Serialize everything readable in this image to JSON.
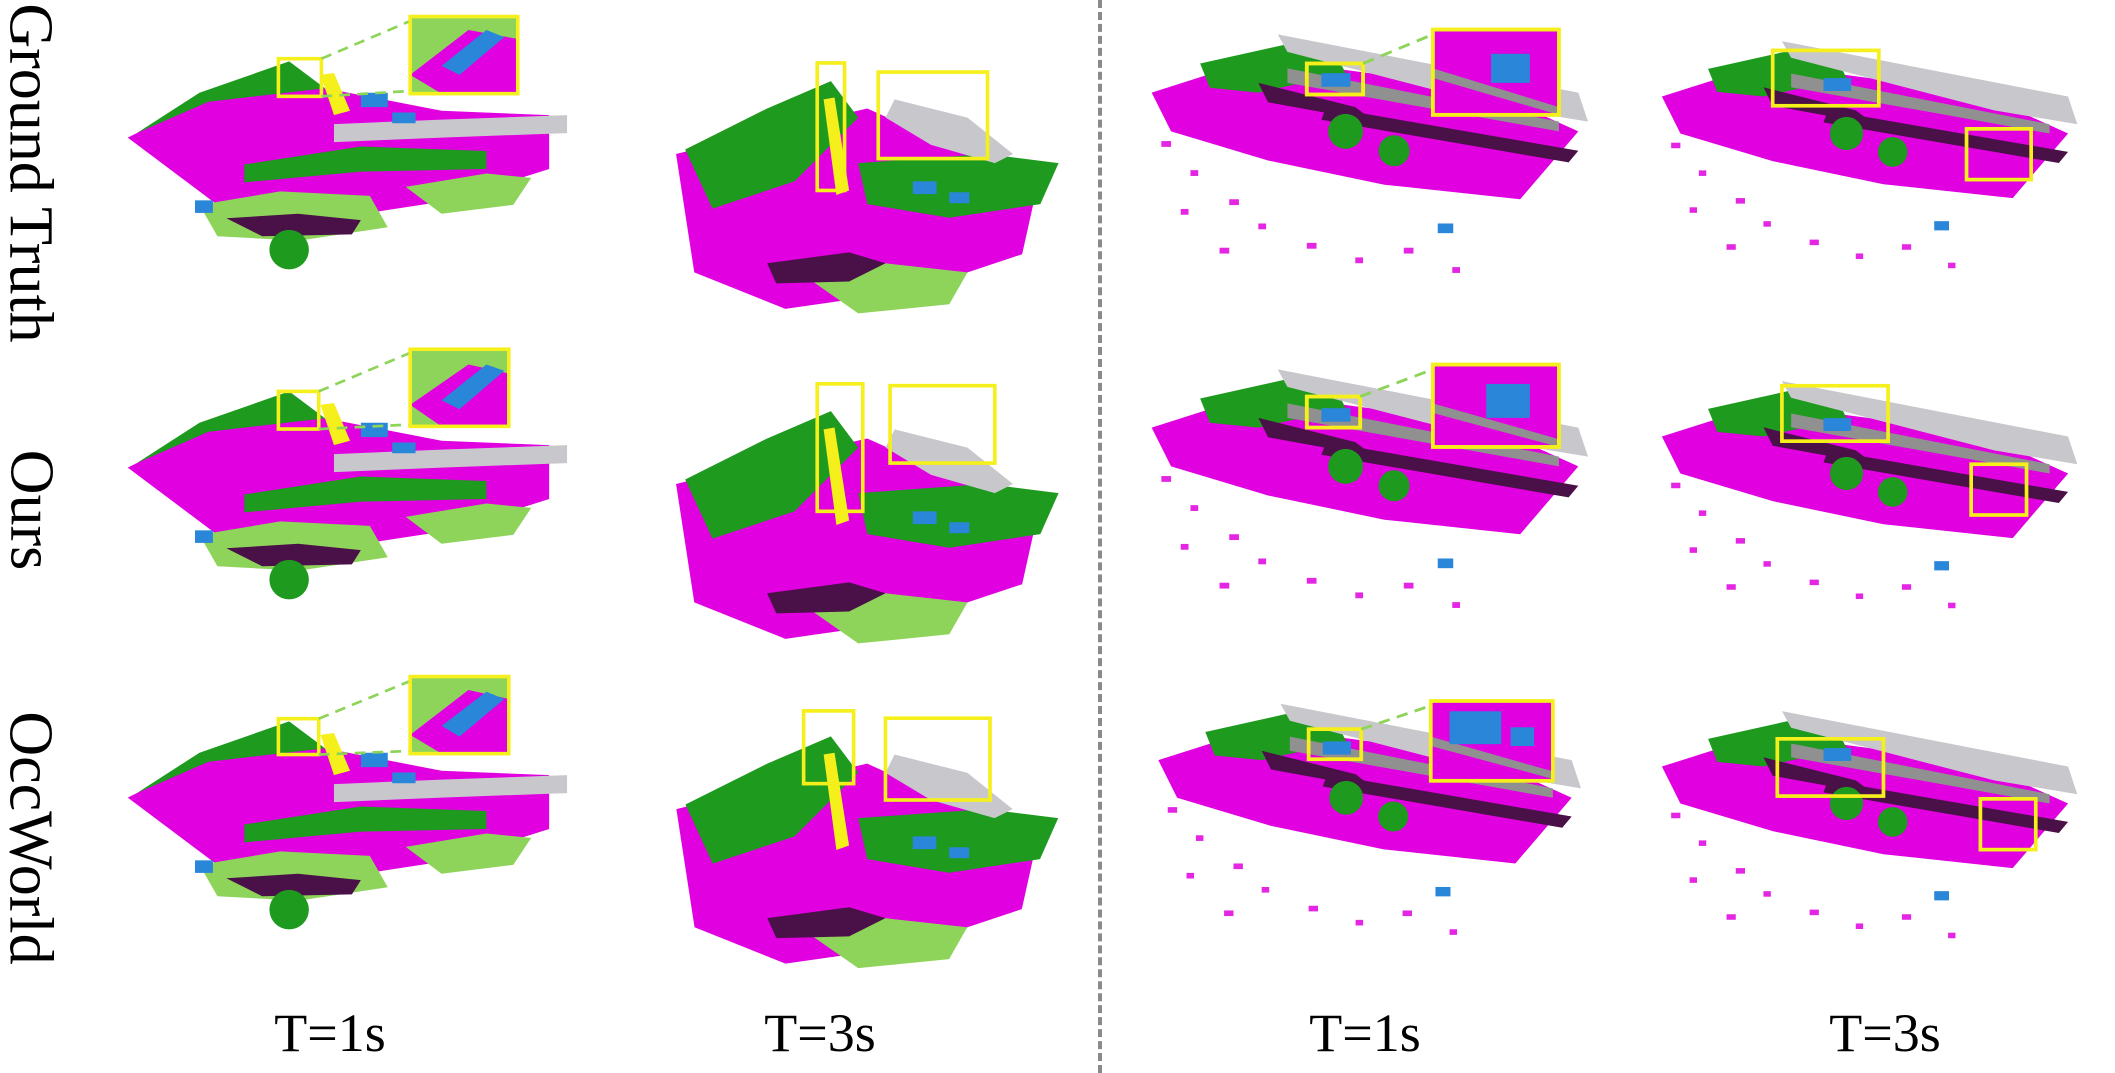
{
  "rows": [
    {
      "label": "Ground Truth"
    },
    {
      "label": "Ours"
    },
    {
      "label": "OccWorld"
    }
  ],
  "columns": [
    {
      "label": "T=1s"
    },
    {
      "label": "T=3s"
    },
    {
      "label": "T=1s"
    },
    {
      "label": "T=3s"
    }
  ],
  "colors": {
    "drivable_surface": "#e000e0",
    "vegetation": "#1e9a1e",
    "terrain": "#8fd45a",
    "vehicle": "#2a86d8",
    "manmade": "#c8c8cc",
    "sidewalk": "#4a1048",
    "highlight_box": "#f5ef1c",
    "zoom_leader": "#8fd45a",
    "divider": "#8a8a8a"
  }
}
